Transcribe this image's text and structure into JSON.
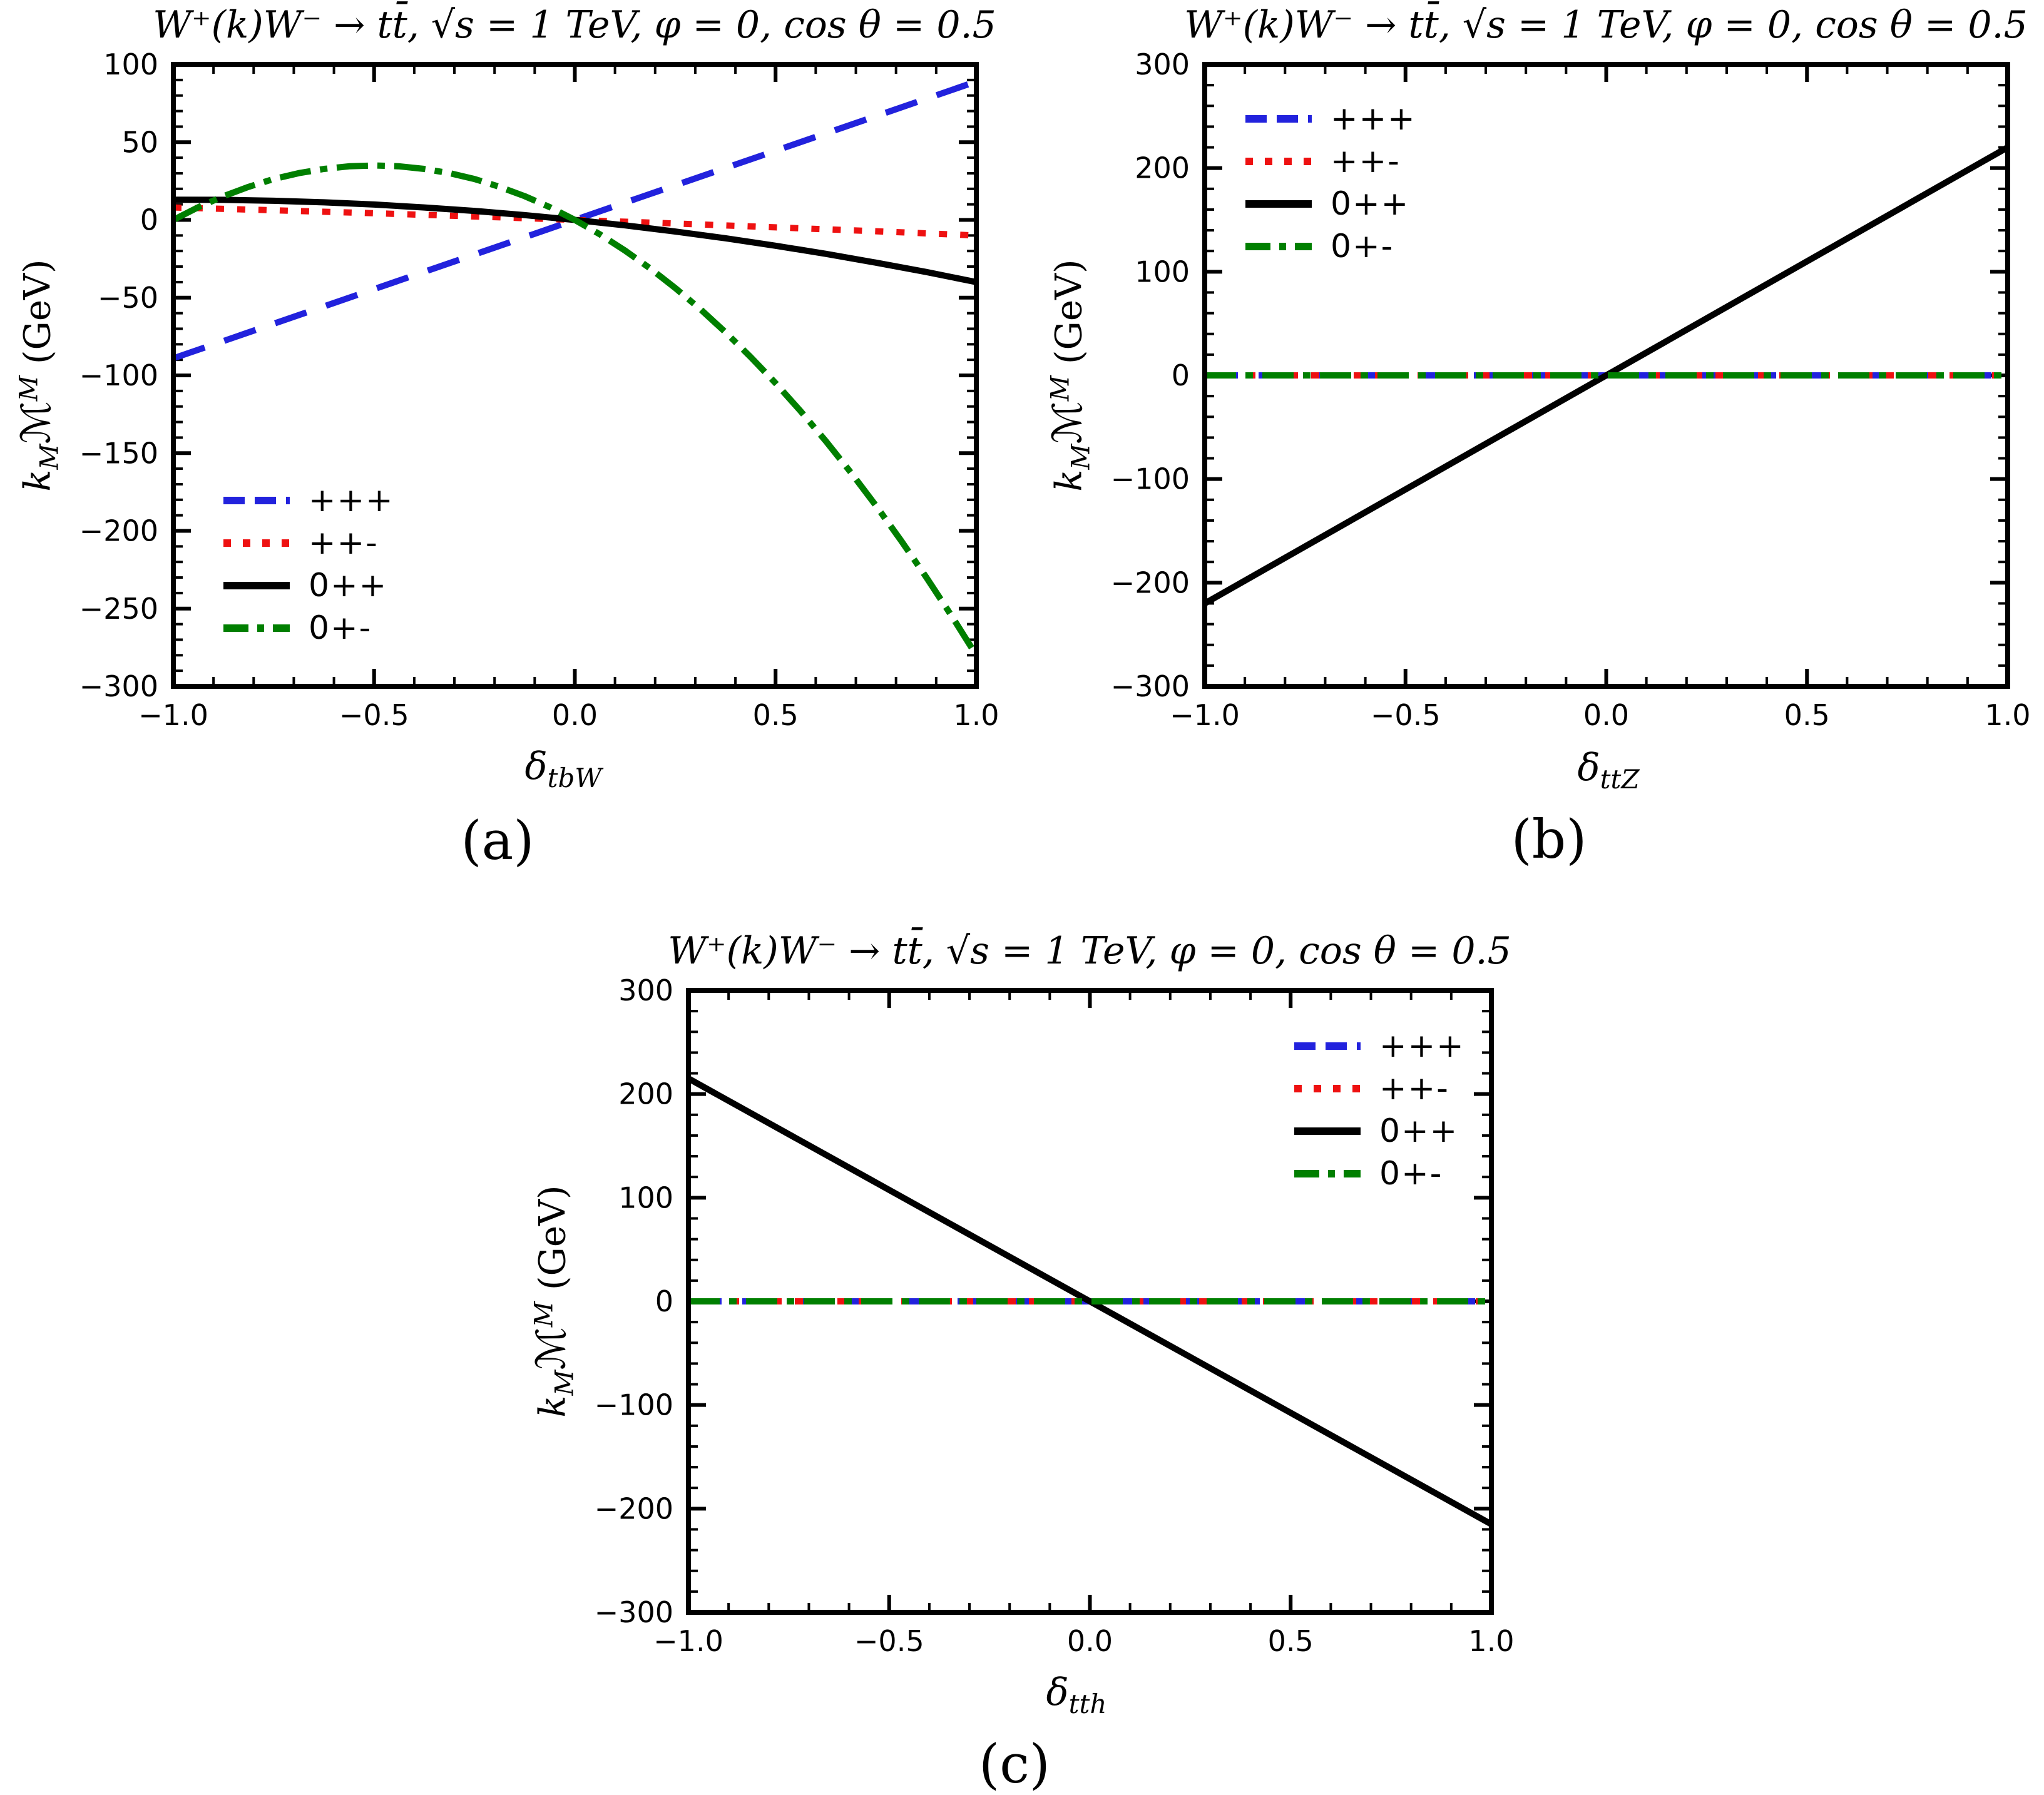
{
  "figure": {
    "background": "#ffffff",
    "type": "three-panel scientific line plots"
  },
  "chart_data": [
    {
      "type": "line",
      "panel": "a",
      "caption": "(a)",
      "title": "W⁺(k)W⁻ → tt̄,  √s = 1 TeV,  φ = 0, cos θ = 0.5",
      "ylabel": {
        "coef": "k",
        "coef_sub": "M",
        "amp": "ℳ",
        "amp_sup": "M",
        "unit": "(GeV)"
      },
      "xlabel": {
        "base": "δ",
        "sub": "tbW"
      },
      "xlim": [
        -1,
        1
      ],
      "ylim": [
        -300,
        100
      ],
      "xticks": [
        -1.0,
        -0.5,
        0.0,
        0.5,
        1.0
      ],
      "xtick_labels": [
        "−1.0",
        "−0.5",
        "0.0",
        "0.5",
        "1.0"
      ],
      "x_minor_step": 0.1,
      "yticks": [
        100,
        50,
        0,
        -50,
        -100,
        -150,
        -200,
        -250,
        -300
      ],
      "ytick_labels": [
        "100",
        "50",
        "0",
        "−50",
        "−100",
        "−150",
        "−200",
        "−250",
        "−300"
      ],
      "y_minor_step": 10,
      "grid": false,
      "legend_position": "bottom-left",
      "series": [
        {
          "label": "+++",
          "color": "#2222dd",
          "style": "dashed",
          "points": [
            [
              -1,
              -89
            ],
            [
              -0.5,
              -44.5
            ],
            [
              0,
              0
            ],
            [
              0.5,
              44.5
            ],
            [
              1,
              89
            ]
          ]
        },
        {
          "label": "++-",
          "color": "#ee1111",
          "style": "dotted",
          "points": [
            [
              -1,
              8
            ],
            [
              -0.75,
              6.2
            ],
            [
              -0.5,
              4.3
            ],
            [
              -0.25,
              2.2
            ],
            [
              0,
              0
            ],
            [
              0.25,
              -2.3
            ],
            [
              0.5,
              -4.8
            ],
            [
              0.75,
              -7.3
            ],
            [
              1,
              -10
            ]
          ]
        },
        {
          "label": "0++",
          "color": "#000000",
          "style": "solid",
          "points": [
            [
              -1,
              13
            ],
            [
              -0.875,
              12.9
            ],
            [
              -0.75,
              12.3
            ],
            [
              -0.625,
              11.3
            ],
            [
              -0.5,
              9.9
            ],
            [
              -0.375,
              8
            ],
            [
              -0.25,
              5.8
            ],
            [
              -0.125,
              3.1
            ],
            [
              0,
              0
            ],
            [
              0.125,
              -3.5
            ],
            [
              0.25,
              -7.5
            ],
            [
              0.375,
              -11.8
            ],
            [
              0.5,
              -16.6
            ],
            [
              0.625,
              -21.8
            ],
            [
              0.75,
              -27.5
            ],
            [
              0.875,
              -33.5
            ],
            [
              1,
              -40
            ]
          ]
        },
        {
          "label": "0+-",
          "color": "#007f00",
          "style": "dashdot",
          "points": [
            [
              -1,
              0
            ],
            [
              -0.9375,
              8.2
            ],
            [
              -0.875,
              15.3
            ],
            [
              -0.8125,
              21.3
            ],
            [
              -0.75,
              26.3
            ],
            [
              -0.6875,
              30.1
            ],
            [
              -0.625,
              32.8
            ],
            [
              -0.5625,
              34.5
            ],
            [
              -0.5,
              35
            ],
            [
              -0.4375,
              34.5
            ],
            [
              -0.375,
              32.8
            ],
            [
              -0.3125,
              30.1
            ],
            [
              -0.25,
              26.3
            ],
            [
              -0.1875,
              21.3
            ],
            [
              -0.125,
              15.3
            ],
            [
              -0.0625,
              8.2
            ],
            [
              0,
              0
            ],
            [
              0.0625,
              -9.3
            ],
            [
              0.125,
              -19.7
            ],
            [
              0.1875,
              -31.2
            ],
            [
              0.25,
              -43.8
            ],
            [
              0.3125,
              -57.4
            ],
            [
              0.375,
              -72.2
            ],
            [
              0.4375,
              -88.1
            ],
            [
              0.5,
              -105
            ],
            [
              0.5625,
              -123
            ],
            [
              0.625,
              -142.2
            ],
            [
              0.6875,
              -162.4
            ],
            [
              0.75,
              -183.8
            ],
            [
              0.8125,
              -206.2
            ],
            [
              0.875,
              -229.7
            ],
            [
              0.9375,
              -254.3
            ],
            [
              1,
              -280
            ]
          ]
        }
      ]
    },
    {
      "type": "line",
      "panel": "b",
      "caption": "(b)",
      "title": "W⁺(k)W⁻ → tt̄,  √s = 1 TeV,  φ = 0, cos θ = 0.5",
      "ylabel": {
        "coef": "k",
        "coef_sub": "M",
        "amp": "ℳ",
        "amp_sup": "M",
        "unit": "(GeV)"
      },
      "xlabel": {
        "base": "δ",
        "sub": "ttZ"
      },
      "xlim": [
        -1,
        1
      ],
      "ylim": [
        -300,
        300
      ],
      "xticks": [
        -1.0,
        -0.5,
        0.0,
        0.5,
        1.0
      ],
      "xtick_labels": [
        "−1.0",
        "−0.5",
        "0.0",
        "0.5",
        "1.0"
      ],
      "x_minor_step": 0.1,
      "yticks": [
        300,
        200,
        100,
        0,
        -100,
        -200,
        -300
      ],
      "ytick_labels": [
        "300",
        "200",
        "100",
        "0",
        "−100",
        "−200",
        "−300"
      ],
      "y_minor_step": 20,
      "grid": false,
      "legend_position": "top-left",
      "series": [
        {
          "label": "+++",
          "color": "#2222dd",
          "style": "dashed",
          "points": [
            [
              -1,
              0
            ],
            [
              1,
              0
            ]
          ]
        },
        {
          "label": "++-",
          "color": "#ee1111",
          "style": "dotted",
          "points": [
            [
              -1,
              0
            ],
            [
              1,
              0
            ]
          ]
        },
        {
          "label": "0++",
          "color": "#000000",
          "style": "solid",
          "points": [
            [
              -1,
              -220
            ],
            [
              0,
              0
            ],
            [
              1,
              220
            ]
          ]
        },
        {
          "label": "0+-",
          "color": "#007f00",
          "style": "dashdot",
          "points": [
            [
              -1,
              0
            ],
            [
              1,
              0
            ]
          ]
        }
      ]
    },
    {
      "type": "line",
      "panel": "c",
      "caption": "(c)",
      "title": "W⁺(k)W⁻ → tt̄,  √s = 1 TeV,  φ = 0, cos θ = 0.5",
      "ylabel": {
        "coef": "k",
        "coef_sub": "M",
        "amp": "ℳ",
        "amp_sup": "M",
        "unit": "(GeV)"
      },
      "xlabel": {
        "base": "δ",
        "sub": "tth"
      },
      "xlim": [
        -1,
        1
      ],
      "ylim": [
        -300,
        300
      ],
      "xticks": [
        -1.0,
        -0.5,
        0.0,
        0.5,
        1.0
      ],
      "xtick_labels": [
        "−1.0",
        "−0.5",
        "0.0",
        "0.5",
        "1.0"
      ],
      "x_minor_step": 0.1,
      "yticks": [
        300,
        200,
        100,
        0,
        -100,
        -200,
        -300
      ],
      "ytick_labels": [
        "300",
        "200",
        "100",
        "0",
        "−100",
        "−200",
        "−300"
      ],
      "y_minor_step": 20,
      "grid": false,
      "legend_position": "top-right",
      "series": [
        {
          "label": "+++",
          "color": "#2222dd",
          "style": "dashed",
          "points": [
            [
              -1,
              0
            ],
            [
              1,
              0
            ]
          ]
        },
        {
          "label": "++-",
          "color": "#ee1111",
          "style": "dotted",
          "points": [
            [
              -1,
              0
            ],
            [
              1,
              0
            ]
          ]
        },
        {
          "label": "0++",
          "color": "#000000",
          "style": "solid",
          "points": [
            [
              -1,
              215
            ],
            [
              0,
              0
            ],
            [
              1,
              -215
            ]
          ]
        },
        {
          "label": "0+-",
          "color": "#007f00",
          "style": "dashdot",
          "points": [
            [
              -1,
              0
            ],
            [
              1,
              0
            ]
          ]
        }
      ]
    }
  ]
}
